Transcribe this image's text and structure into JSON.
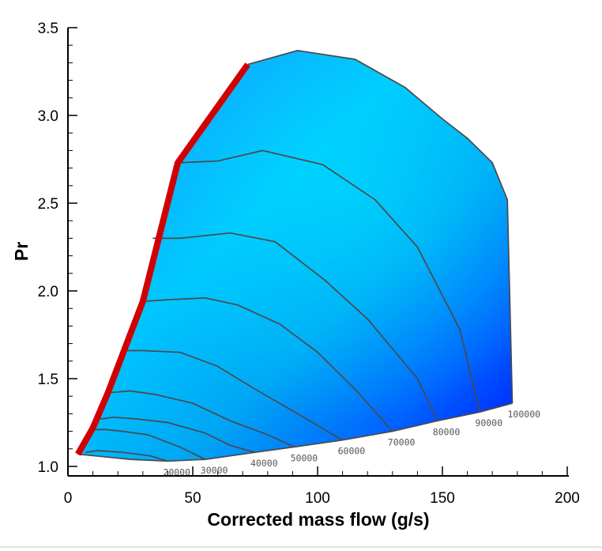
{
  "chart_data": {
    "type": "area",
    "title": "",
    "xlabel": "Corrected mass flow (g/s)",
    "ylabel": "Pr",
    "xlim": [
      0,
      200
    ],
    "ylim": [
      1.0,
      3.5
    ],
    "xticks": [
      0,
      50,
      100,
      150,
      200
    ],
    "xtick_labels": [
      "0",
      "50",
      "100",
      "150",
      "200"
    ],
    "yticks": [
      1.0,
      1.5,
      2.0,
      2.5,
      3.0,
      3.5
    ],
    "ytick_labels": [
      "1.0",
      "1.5",
      "2.0",
      "2.5",
      "3.0",
      "3.5"
    ],
    "grid": false,
    "colors": {
      "surge_line": "#d00000",
      "fill_light": "#00ccff",
      "fill_dark": "#0018ff",
      "speedline": "#4a4a4a"
    },
    "surge_line": {
      "x": [
        4,
        10,
        16,
        30,
        44,
        72
      ],
      "y": [
        1.07,
        1.22,
        1.42,
        1.94,
        2.73,
        3.29
      ]
    },
    "choke_line": {
      "x": [
        4,
        25,
        40,
        55,
        75,
        90,
        110,
        130,
        148,
        165,
        178
      ],
      "y": [
        1.07,
        1.04,
        1.03,
        1.04,
        1.08,
        1.11,
        1.15,
        1.2,
        1.26,
        1.31,
        1.36
      ]
    },
    "top_contour": {
      "x": [
        72,
        92,
        115,
        135,
        150,
        160,
        170,
        176,
        178
      ],
      "y": [
        3.29,
        3.37,
        3.32,
        3.16,
        2.98,
        2.87,
        2.73,
        2.52,
        1.36
      ]
    },
    "speed_lines": [
      {
        "label": "20000",
        "x": [
          7,
          12,
          22,
          33,
          40
        ],
        "y": [
          1.08,
          1.09,
          1.08,
          1.06,
          1.03
        ]
      },
      {
        "label": "30000",
        "x": [
          10,
          15,
          22,
          32,
          45,
          55
        ],
        "y": [
          1.21,
          1.21,
          1.2,
          1.18,
          1.11,
          1.04
        ]
      },
      {
        "label": "40000",
        "x": [
          13,
          18,
          28,
          40,
          55,
          65,
          75
        ],
        "y": [
          1.27,
          1.28,
          1.27,
          1.25,
          1.19,
          1.12,
          1.08
        ]
      },
      {
        "label": "50000",
        "x": [
          16,
          25,
          35,
          50,
          65,
          80,
          91
        ],
        "y": [
          1.42,
          1.43,
          1.41,
          1.36,
          1.26,
          1.18,
          1.11
        ]
      },
      {
        "label": "60000",
        "x": [
          22,
          30,
          45,
          60,
          75,
          92,
          110
        ],
        "y": [
          1.66,
          1.66,
          1.65,
          1.57,
          1.44,
          1.3,
          1.15
        ]
      },
      {
        "label": "70000",
        "x": [
          30,
          40,
          55,
          68,
          85,
          100,
          115,
          130
        ],
        "y": [
          1.94,
          1.95,
          1.96,
          1.92,
          1.81,
          1.65,
          1.44,
          1.2
        ]
      },
      {
        "label": "80000",
        "x": [
          34,
          45,
          65,
          83,
          103,
          120,
          140,
          148
        ],
        "y": [
          2.3,
          2.3,
          2.33,
          2.28,
          2.06,
          1.84,
          1.5,
          1.26
        ]
      },
      {
        "label": "90000",
        "x": [
          44,
          60,
          78,
          102,
          123,
          140,
          157,
          165
        ],
        "y": [
          2.73,
          2.74,
          2.8,
          2.72,
          2.52,
          2.25,
          1.78,
          1.31
        ]
      }
    ]
  }
}
